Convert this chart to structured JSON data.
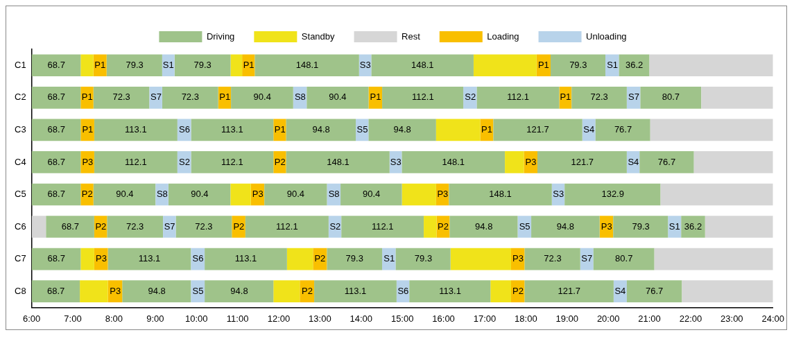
{
  "chart_data": {
    "type": "bar",
    "orientation": "horizontal",
    "legend": "top",
    "xlim": [
      6,
      24
    ],
    "xticks": [
      {
        "value": 6,
        "label": "6:00"
      },
      {
        "value": 7,
        "label": "7:00"
      },
      {
        "value": 8,
        "label": "8:00"
      },
      {
        "value": 9,
        "label": "9:00"
      },
      {
        "value": 10,
        "label": "10:00"
      },
      {
        "value": 11,
        "label": "11:00"
      },
      {
        "value": 12,
        "label": "12:00"
      },
      {
        "value": 13,
        "label": "13:00"
      },
      {
        "value": 14,
        "label": "14:00"
      },
      {
        "value": 15,
        "label": "15:00"
      },
      {
        "value": 16,
        "label": "16:00"
      },
      {
        "value": 17,
        "label": "17:00"
      },
      {
        "value": 18,
        "label": "18:00"
      },
      {
        "value": 19,
        "label": "19:00"
      },
      {
        "value": 20,
        "label": "20:00"
      },
      {
        "value": 21,
        "label": "21:00"
      },
      {
        "value": 22,
        "label": "22:00"
      },
      {
        "value": 23,
        "label": "23:00"
      },
      {
        "value": 24,
        "label": "24:00"
      }
    ],
    "categories": [
      "C1",
      "C2",
      "C3",
      "C4",
      "C5",
      "C6",
      "C7",
      "C8"
    ],
    "series": [
      {
        "name": "Driving",
        "color": "#9fc38a",
        "base": [
          6,
          6,
          6,
          6,
          6,
          6.35,
          6,
          6
        ],
        "values": [
          1.19,
          1.19,
          1.19,
          1.19,
          1.19,
          1.17,
          1.19,
          1.17
        ]
      },
      {
        "name": "Standby",
        "color": "#f0e31a",
        "base": [
          7.19,
          null,
          15.82,
          17.49,
          10.83,
          15.52,
          7.19,
          7.17
        ],
        "values": [
          0.31,
          null,
          1.07,
          0.46,
          0.49,
          0.31,
          0.33,
          0.68
        ]
      },
      {
        "name": "Rest",
        "color": "#d6d6d6",
        "base": [
          21.0,
          22.26,
          21.02,
          22.08,
          21.27,
          6,
          21.12,
          21.79
        ],
        "values": [
          3.0,
          1.74,
          2.98,
          1.92,
          2.73,
          0.35,
          2.88,
          2.21
        ]
      },
      {
        "name": "Loading",
        "color": "#f9bf00",
        "base": [
          7.5,
          7.19,
          7.19,
          7.19,
          7.19,
          7.52,
          7.52,
          7.85
        ],
        "values": [
          0.32,
          0.31,
          0.33,
          0.33,
          0.31,
          0.31,
          0.33,
          0.35
        ]
      },
      {
        "name": "Unloading",
        "color": "#b8d3ea",
        "base": [
          9.17,
          8.86,
          9.54,
          9.54,
          9.01,
          9.19,
          9.87,
          9.87
        ],
        "values": [
          0.3,
          0.31,
          0.33,
          0.33,
          0.31,
          0.31,
          0.33,
          0.33
        ]
      },
      {
        "color": "#9fc38a",
        "base": [
          7.82,
          7.5,
          7.52,
          7.52,
          7.5,
          7.83,
          7.85,
          8.2
        ],
        "values": [
          1.35,
          1.36,
          2.02,
          2.02,
          1.51,
          1.36,
          2.02,
          1.67
        ]
      },
      {
        "color": "#9fc38a",
        "base": [
          9.47,
          9.17,
          9.87,
          9.87,
          9.32,
          9.5,
          10.2,
          10.2
        ],
        "values": [
          1.36,
          1.36,
          2.0,
          2.0,
          1.51,
          1.36,
          2.0,
          1.67
        ]
      },
      {
        "color": "#9fc38a",
        "base": [
          11.42,
          10.84,
          12.18,
          12.18,
          11.65,
          11.19,
          13.17,
          12.86
        ],
        "values": [
          2.53,
          1.51,
          1.69,
          2.51,
          1.52,
          2.02,
          1.34,
          2.0
        ]
      },
      {
        "color": "#9fc38a",
        "base": [
          14.25,
          12.68,
          14.18,
          14.99,
          13.5,
          13.52,
          14.84,
          15.17
        ],
        "values": [
          2.48,
          1.5,
          1.64,
          2.5,
          1.49,
          2.0,
          1.33,
          1.97
        ]
      },
      {
        "color": "#9fc38a",
        "base": [
          18.6,
          14.51,
          17.21,
          18.28,
          16.13,
          16.15,
          17.97,
          17.97
        ],
        "values": [
          1.33,
          1.97,
          2.16,
          2.17,
          2.5,
          1.65,
          1.35,
          2.16
        ]
      },
      {
        "color": "#9fc38a",
        "base": [
          20.26,
          16.81,
          19.69,
          20.76,
          18.94,
          18.13,
          19.64,
          20.45
        ],
        "values": [
          0.74,
          2.0,
          1.33,
          1.32,
          2.33,
          1.66,
          1.48,
          1.34
        ]
      },
      {
        "color": "#9fc38a",
        "base": [
          null,
          19.11,
          null,
          null,
          null,
          20.12,
          null,
          null
        ],
        "values": [
          null,
          1.34,
          null,
          null,
          null,
          1.33,
          null,
          null
        ]
      },
      {
        "color": "#9fc38a",
        "base": [
          null,
          20.78,
          null,
          null,
          null,
          21.77,
          null,
          null
        ],
        "values": [
          null,
          1.48,
          null,
          null,
          null,
          0.58,
          null,
          null
        ]
      },
      {
        "color": "#f0e31a",
        "base": [
          10.83,
          null,
          null,
          null,
          14.99,
          null,
          12.2,
          11.87
        ],
        "values": [
          0.28,
          null,
          null,
          null,
          0.83,
          null,
          0.63,
          0.64
        ]
      },
      {
        "color": "#f0e31a",
        "base": [
          16.73,
          null,
          null,
          null,
          null,
          null,
          16.17,
          17.14
        ],
        "values": [
          1.53,
          null,
          null,
          null,
          null,
          null,
          1.47,
          0.5
        ]
      },
      {
        "color": "#d6d6d6",
        "base": [
          null,
          null,
          null,
          null,
          null,
          22.35,
          null,
          null
        ],
        "values": [
          null,
          null,
          null,
          null,
          null,
          1.65,
          null,
          null
        ]
      },
      {
        "color": "#f9bf00",
        "base": [
          11.11,
          10.53,
          11.87,
          11.87,
          11.32,
          10.86,
          12.83,
          12.51
        ],
        "values": [
          0.31,
          0.31,
          0.31,
          0.31,
          0.33,
          0.33,
          0.34,
          0.35
        ]
      },
      {
        "color": "#f9bf00",
        "base": [
          18.26,
          14.18,
          16.89,
          17.95,
          15.82,
          15.83,
          17.64,
          17.64
        ],
        "values": [
          0.34,
          0.33,
          0.32,
          0.33,
          0.31,
          0.32,
          0.33,
          0.33
        ]
      },
      {
        "color": "#f9bf00",
        "base": [
          null,
          18.81,
          null,
          null,
          null,
          19.79,
          null,
          null
        ],
        "values": [
          null,
          0.3,
          null,
          null,
          null,
          0.33,
          null,
          null
        ]
      },
      {
        "color": "#b8d3ea",
        "base": [
          13.95,
          12.35,
          13.87,
          14.69,
          13.17,
          13.21,
          14.51,
          14.86
        ],
        "values": [
          0.3,
          0.33,
          0.31,
          0.3,
          0.33,
          0.31,
          0.33,
          0.31
        ]
      },
      {
        "color": "#b8d3ea",
        "base": [
          19.93,
          16.48,
          19.37,
          20.45,
          18.63,
          17.8,
          19.32,
          20.13
        ],
        "values": [
          0.33,
          0.33,
          0.32,
          0.31,
          0.31,
          0.33,
          0.32,
          0.32
        ]
      },
      {
        "color": "#b8d3ea",
        "base": [
          null,
          20.45,
          null,
          null,
          null,
          21.45,
          null,
          null
        ],
        "values": [
          null,
          0.33,
          null,
          null,
          null,
          0.32,
          null,
          null
        ]
      }
    ],
    "annotations": [
      {
        "text": "68.7",
        "x": 6.6,
        "y": "C1"
      },
      {
        "text": "P1",
        "x": 7.66,
        "y": "C1"
      },
      {
        "text": "79.3",
        "x": 8.5,
        "y": "C1"
      },
      {
        "text": "S1",
        "x": 9.32,
        "y": "C1"
      },
      {
        "text": "79.3",
        "x": 10.15,
        "y": "C1"
      },
      {
        "text": "P1",
        "x": 11.27,
        "y": "C1"
      },
      {
        "text": "148.1",
        "x": 12.69,
        "y": "C1"
      },
      {
        "text": "S3",
        "x": 14.1,
        "y": "C1"
      },
      {
        "text": "148.1",
        "x": 15.49,
        "y": "C1"
      },
      {
        "text": "P1",
        "x": 18.43,
        "y": "C1"
      },
      {
        "text": "79.3",
        "x": 19.27,
        "y": "C1"
      },
      {
        "text": "S1",
        "x": 20.1,
        "y": "C1"
      },
      {
        "text": "36.2",
        "x": 20.63,
        "y": "C1"
      },
      {
        "text": "68.7",
        "x": 6.6,
        "y": "C2"
      },
      {
        "text": "P1",
        "x": 7.35,
        "y": "C2"
      },
      {
        "text": "72.3",
        "x": 8.18,
        "y": "C2"
      },
      {
        "text": "S7",
        "x": 9.02,
        "y": "C2"
      },
      {
        "text": "72.3",
        "x": 9.85,
        "y": "C2"
      },
      {
        "text": "P1",
        "x": 10.69,
        "y": "C2"
      },
      {
        "text": "90.4",
        "x": 11.6,
        "y": "C2"
      },
      {
        "text": "S8",
        "x": 12.52,
        "y": "C2"
      },
      {
        "text": "90.4",
        "x": 13.43,
        "y": "C2"
      },
      {
        "text": "P1",
        "x": 14.35,
        "y": "C2"
      },
      {
        "text": "112.1",
        "x": 15.5,
        "y": "C2"
      },
      {
        "text": "S2",
        "x": 16.65,
        "y": "C2"
      },
      {
        "text": "112.1",
        "x": 17.81,
        "y": "C2"
      },
      {
        "text": "P1",
        "x": 18.96,
        "y": "C2"
      },
      {
        "text": "72.3",
        "x": 19.78,
        "y": "C2"
      },
      {
        "text": "S7",
        "x": 20.62,
        "y": "C2"
      },
      {
        "text": "80.7",
        "x": 21.52,
        "y": "C2"
      },
      {
        "text": "68.7",
        "x": 6.6,
        "y": "C3"
      },
      {
        "text": "P1",
        "x": 7.36,
        "y": "C3"
      },
      {
        "text": "113.1",
        "x": 8.53,
        "y": "C3"
      },
      {
        "text": "S6",
        "x": 9.71,
        "y": "C3"
      },
      {
        "text": "113.1",
        "x": 10.87,
        "y": "C3"
      },
      {
        "text": "P1",
        "x": 12.03,
        "y": "C3"
      },
      {
        "text": "94.8",
        "x": 13.03,
        "y": "C3"
      },
      {
        "text": "S5",
        "x": 14.03,
        "y": "C3"
      },
      {
        "text": "94.8",
        "x": 15.0,
        "y": "C3"
      },
      {
        "text": "P1",
        "x": 17.05,
        "y": "C3"
      },
      {
        "text": "121.7",
        "x": 18.29,
        "y": "C3"
      },
      {
        "text": "S4",
        "x": 19.53,
        "y": "C3"
      },
      {
        "text": "76.7",
        "x": 20.36,
        "y": "C3"
      },
      {
        "text": "68.7",
        "x": 6.6,
        "y": "C4"
      },
      {
        "text": "P3",
        "x": 7.36,
        "y": "C4"
      },
      {
        "text": "112.1",
        "x": 8.53,
        "y": "C4"
      },
      {
        "text": "S2",
        "x": 9.71,
        "y": "C4"
      },
      {
        "text": "112.1",
        "x": 10.87,
        "y": "C4"
      },
      {
        "text": "P2",
        "x": 12.03,
        "y": "C4"
      },
      {
        "text": "148.1",
        "x": 13.44,
        "y": "C4"
      },
      {
        "text": "S3",
        "x": 14.84,
        "y": "C4"
      },
      {
        "text": "148.1",
        "x": 16.24,
        "y": "C4"
      },
      {
        "text": "P3",
        "x": 18.12,
        "y": "C4"
      },
      {
        "text": "121.7",
        "x": 19.37,
        "y": "C4"
      },
      {
        "text": "S4",
        "x": 20.61,
        "y": "C4"
      },
      {
        "text": "76.7",
        "x": 21.42,
        "y": "C4"
      },
      {
        "text": "68.7",
        "x": 6.6,
        "y": "C5"
      },
      {
        "text": "P2",
        "x": 7.35,
        "y": "C5"
      },
      {
        "text": "90.4",
        "x": 8.26,
        "y": "C5"
      },
      {
        "text": "S8",
        "x": 9.17,
        "y": "C5"
      },
      {
        "text": "90.4",
        "x": 10.08,
        "y": "C5"
      },
      {
        "text": "P3",
        "x": 11.49,
        "y": "C5"
      },
      {
        "text": "90.4",
        "x": 12.41,
        "y": "C5"
      },
      {
        "text": "S8",
        "x": 13.34,
        "y": "C5"
      },
      {
        "text": "90.4",
        "x": 14.25,
        "y": "C5"
      },
      {
        "text": "P3",
        "x": 15.98,
        "y": "C5"
      },
      {
        "text": "148.1",
        "x": 17.38,
        "y": "C5"
      },
      {
        "text": "S3",
        "x": 18.79,
        "y": "C5"
      },
      {
        "text": "132.9",
        "x": 20.11,
        "y": "C5"
      },
      {
        "text": "68.7",
        "x": 6.94,
        "y": "C6"
      },
      {
        "text": "P2",
        "x": 7.68,
        "y": "C6"
      },
      {
        "text": "72.3",
        "x": 8.51,
        "y": "C6"
      },
      {
        "text": "S7",
        "x": 9.35,
        "y": "C6"
      },
      {
        "text": "72.3",
        "x": 10.18,
        "y": "C6"
      },
      {
        "text": "P2",
        "x": 11.03,
        "y": "C6"
      },
      {
        "text": "112.1",
        "x": 12.2,
        "y": "C6"
      },
      {
        "text": "S2",
        "x": 13.37,
        "y": "C6"
      },
      {
        "text": "112.1",
        "x": 14.52,
        "y": "C6"
      },
      {
        "text": "P2",
        "x": 15.99,
        "y": "C6"
      },
      {
        "text": "94.8",
        "x": 16.98,
        "y": "C6"
      },
      {
        "text": "S5",
        "x": 17.97,
        "y": "C6"
      },
      {
        "text": "94.8",
        "x": 18.96,
        "y": "C6"
      },
      {
        "text": "P3",
        "x": 19.96,
        "y": "C6"
      },
      {
        "text": "79.3",
        "x": 20.79,
        "y": "C6"
      },
      {
        "text": "S1",
        "x": 21.61,
        "y": "C6"
      },
      {
        "text": "36.2",
        "x": 22.06,
        "y": "C6"
      },
      {
        "text": "68.7",
        "x": 6.6,
        "y": "C7"
      },
      {
        "text": "P3",
        "x": 7.69,
        "y": "C7"
      },
      {
        "text": "113.1",
        "x": 8.86,
        "y": "C7"
      },
      {
        "text": "S6",
        "x": 10.04,
        "y": "C7"
      },
      {
        "text": "113.1",
        "x": 11.2,
        "y": "C7"
      },
      {
        "text": "P2",
        "x": 13.0,
        "y": "C7"
      },
      {
        "text": "79.3",
        "x": 13.84,
        "y": "C7"
      },
      {
        "text": "S1",
        "x": 14.68,
        "y": "C7"
      },
      {
        "text": "79.3",
        "x": 15.51,
        "y": "C7"
      },
      {
        "text": "P3",
        "x": 17.81,
        "y": "C7"
      },
      {
        "text": "72.3",
        "x": 18.65,
        "y": "C7"
      },
      {
        "text": "S7",
        "x": 19.48,
        "y": "C7"
      },
      {
        "text": "80.7",
        "x": 20.38,
        "y": "C7"
      },
      {
        "text": "68.7",
        "x": 6.59,
        "y": "C8"
      },
      {
        "text": "P3",
        "x": 8.03,
        "y": "C8"
      },
      {
        "text": "94.8",
        "x": 9.04,
        "y": "C8"
      },
      {
        "text": "S5",
        "x": 10.04,
        "y": "C8"
      },
      {
        "text": "94.8",
        "x": 11.04,
        "y": "C8"
      },
      {
        "text": "P2",
        "x": 12.69,
        "y": "C8"
      },
      {
        "text": "113.1",
        "x": 13.86,
        "y": "C8"
      },
      {
        "text": "S6",
        "x": 15.02,
        "y": "C8"
      },
      {
        "text": "113.1",
        "x": 16.16,
        "y": "C8"
      },
      {
        "text": "P2",
        "x": 17.81,
        "y": "C8"
      },
      {
        "text": "121.7",
        "x": 19.05,
        "y": "C8"
      },
      {
        "text": "S4",
        "x": 20.29,
        "y": "C8"
      },
      {
        "text": "76.7",
        "x": 21.12,
        "y": "C8"
      }
    ]
  }
}
